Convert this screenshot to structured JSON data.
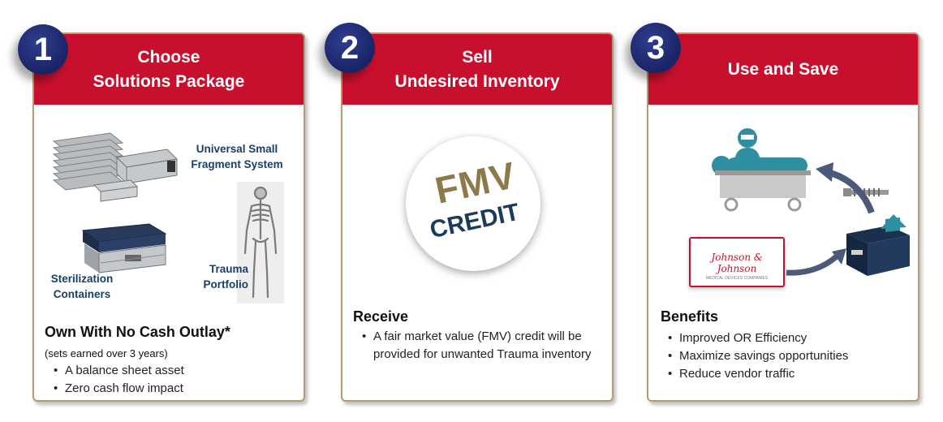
{
  "steps": [
    {
      "number": "1",
      "title_line1": "Choose",
      "title_line2": "Solutions Package",
      "labels": {
        "universal": "Universal Small\nFragment System",
        "sterilization": "Sterilization\nContainers",
        "trauma": "Trauma\nPortfolio"
      },
      "heading": "Own With No Cash Outlay*",
      "note": "(sets earned over 3 years)",
      "bullets": [
        "A balance sheet asset",
        "Zero cash flow impact"
      ]
    },
    {
      "number": "2",
      "title_line1": "Sell",
      "title_line2": "Undesired Inventory",
      "stamp_top": "FMV",
      "stamp_bottom": "CREDIT",
      "heading": "Receive",
      "bullets": [
        "A fair market value (FMV) credit will be provided for unwanted Trauma inventory"
      ]
    },
    {
      "number": "3",
      "title_line1": "Use and Save",
      "logo_text": "Johnson & Johnson",
      "logo_subtext": "MEDICAL DEVICES COMPANIES",
      "heading": "Benefits",
      "bullets": [
        "Improved OR Efficiency",
        "Maximize savings opportunities",
        "Reduce vendor traffic"
      ]
    }
  ],
  "colors": {
    "header_red": "#c8102e",
    "badge_navy": "#1a2466",
    "label_blue": "#1a3f66",
    "stamp_gold": "#8c7a4b",
    "stamp_navy": "#1b3a5c",
    "icon_teal": "#2e8fa0"
  }
}
